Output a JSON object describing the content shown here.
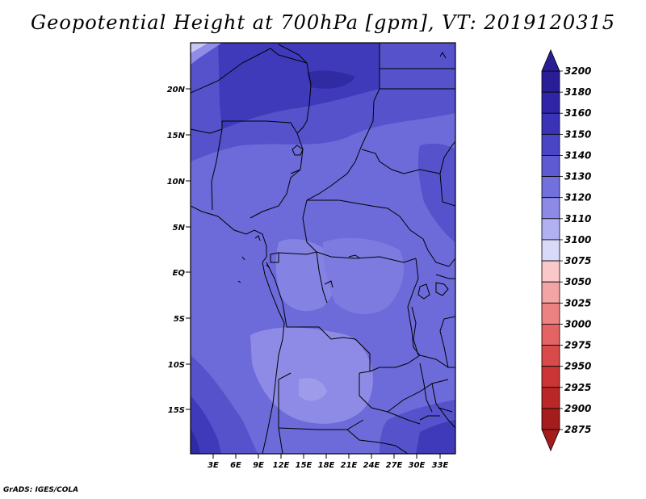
{
  "title": "Geopotential Height at 700hPa [gpm], VT: 2019120315",
  "credit": "GrADS: IGES/COLA",
  "lat_labels": [
    "20N",
    "15N",
    "10N",
    "5N",
    "EQ",
    "5S",
    "10S",
    "15S"
  ],
  "lon_labels": [
    "3E",
    "6E",
    "9E",
    "12E",
    "15E",
    "18E",
    "21E",
    "24E",
    "27E",
    "30E",
    "33E"
  ],
  "colorbar": [
    {
      "label": "3200",
      "color": "#2a1e96"
    },
    {
      "label": "3180",
      "color": "#3025a6"
    },
    {
      "label": "3160",
      "color": "#3a33b8"
    },
    {
      "label": "3150",
      "color": "#4a45c7"
    },
    {
      "label": "3140",
      "color": "#5d5ad2"
    },
    {
      "label": "3130",
      "color": "#7270dc"
    },
    {
      "label": "3120",
      "color": "#8c8ae6"
    },
    {
      "label": "3110",
      "color": "#b1b0f0"
    },
    {
      "label": "3100",
      "color": "#d9d9f9"
    },
    {
      "label": "3075",
      "color": "#fde7e7"
    },
    {
      "label": "3050",
      "color": "#f9c9c9"
    },
    {
      "label": "3025",
      "color": "#f3a4a4"
    },
    {
      "label": "3000",
      "color": "#ec8282"
    },
    {
      "label": "2975",
      "color": "#e46464"
    },
    {
      "label": "2950",
      "color": "#d94a4a"
    },
    {
      "label": "2925",
      "color": "#cc3535"
    },
    {
      "label": "2900",
      "color": "#bb2626"
    },
    {
      "label": "2875",
      "color": "#a51c1c"
    }
  ]
}
